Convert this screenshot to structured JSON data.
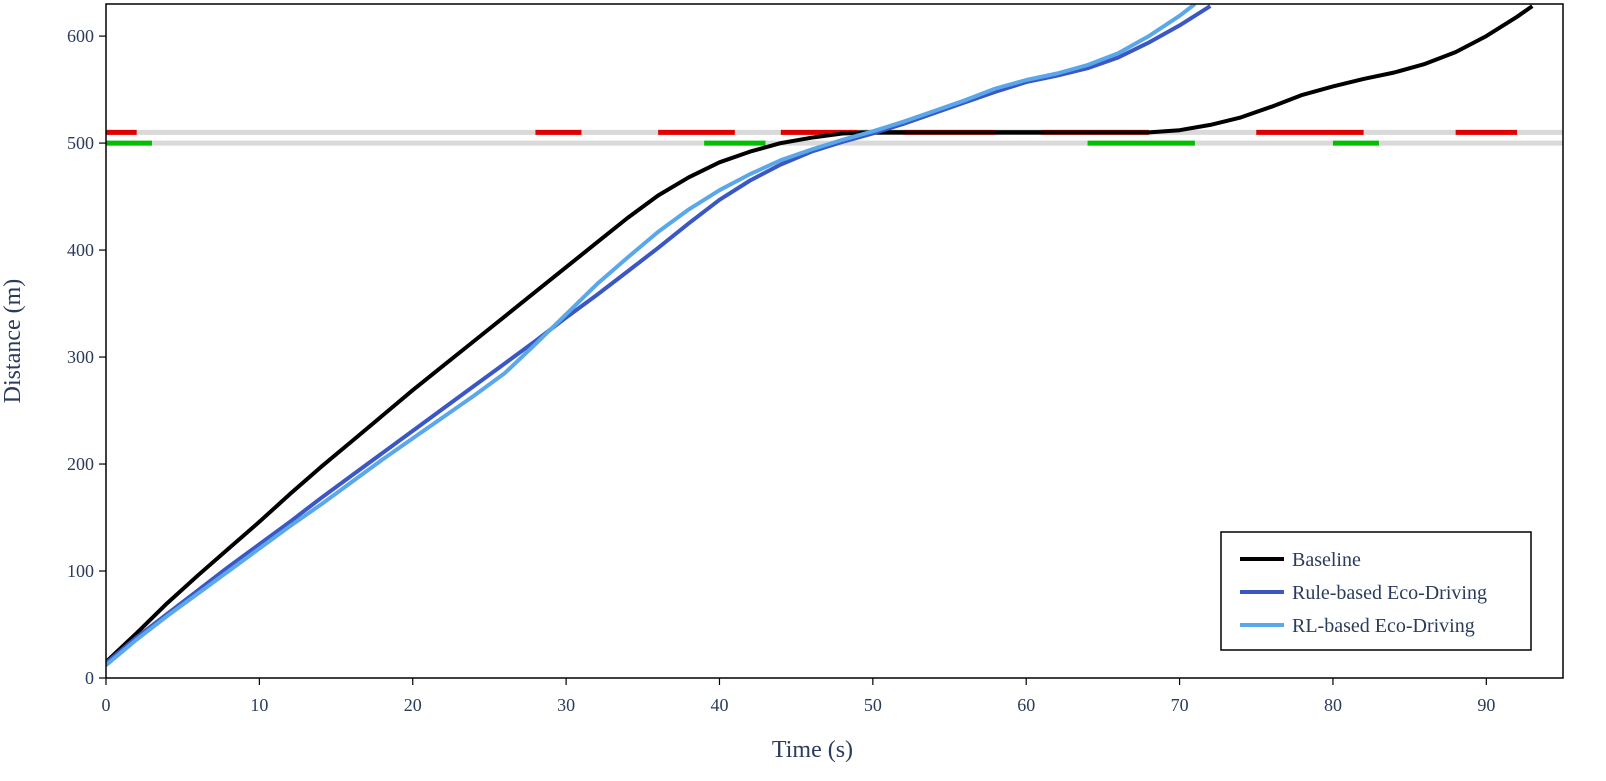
{
  "chart_data": {
    "type": "line",
    "title": "",
    "xlabel": "Time (s)",
    "ylabel": "Distance (m)",
    "xlim": [
      0,
      95
    ],
    "ylim": [
      0,
      630
    ],
    "xticks": [
      0,
      10,
      20,
      30,
      40,
      50,
      60,
      70,
      80,
      90
    ],
    "yticks": [
      0,
      100,
      200,
      300,
      400,
      500,
      600
    ],
    "grid": false,
    "legend_position": "bottom-right",
    "series": [
      {
        "name": "Baseline",
        "color": "#000000",
        "points": [
          [
            0,
            15
          ],
          [
            2,
            42
          ],
          [
            4,
            70
          ],
          [
            6,
            96
          ],
          [
            8,
            121
          ],
          [
            10,
            146
          ],
          [
            12,
            172
          ],
          [
            14,
            197
          ],
          [
            16,
            221
          ],
          [
            18,
            245
          ],
          [
            20,
            269
          ],
          [
            22,
            292
          ],
          [
            24,
            315
          ],
          [
            26,
            338
          ],
          [
            28,
            361
          ],
          [
            30,
            384
          ],
          [
            32,
            407
          ],
          [
            34,
            430
          ],
          [
            36,
            451
          ],
          [
            38,
            468
          ],
          [
            40,
            482
          ],
          [
            42,
            492
          ],
          [
            44,
            500
          ],
          [
            46,
            505
          ],
          [
            48,
            509
          ],
          [
            50,
            510
          ],
          [
            60,
            510
          ],
          [
            68,
            510
          ],
          [
            70,
            512
          ],
          [
            72,
            517
          ],
          [
            74,
            524
          ],
          [
            76,
            534
          ],
          [
            78,
            545
          ],
          [
            80,
            553
          ],
          [
            82,
            560
          ],
          [
            84,
            566
          ],
          [
            86,
            574
          ],
          [
            88,
            585
          ],
          [
            90,
            600
          ],
          [
            92,
            618
          ],
          [
            93,
            628
          ]
        ]
      },
      {
        "name": "Rule-based Eco-Driving",
        "color": "#3a57c4",
        "points": [
          [
            0,
            14
          ],
          [
            2,
            38
          ],
          [
            4,
            60
          ],
          [
            6,
            82
          ],
          [
            8,
            104
          ],
          [
            10,
            125
          ],
          [
            12,
            146
          ],
          [
            14,
            168
          ],
          [
            16,
            189
          ],
          [
            18,
            210
          ],
          [
            20,
            231
          ],
          [
            22,
            252
          ],
          [
            24,
            273
          ],
          [
            26,
            294
          ],
          [
            28,
            315
          ],
          [
            30,
            337
          ],
          [
            32,
            358
          ],
          [
            34,
            380
          ],
          [
            36,
            402
          ],
          [
            38,
            425
          ],
          [
            40,
            447
          ],
          [
            42,
            465
          ],
          [
            44,
            480
          ],
          [
            46,
            492
          ],
          [
            48,
            501
          ],
          [
            50,
            509
          ],
          [
            52,
            518
          ],
          [
            54,
            528
          ],
          [
            56,
            538
          ],
          [
            58,
            548
          ],
          [
            60,
            557
          ],
          [
            62,
            563
          ],
          [
            64,
            570
          ],
          [
            66,
            580
          ],
          [
            68,
            594
          ],
          [
            70,
            610
          ],
          [
            72,
            628
          ]
        ]
      },
      {
        "name": "RL-based Eco-Driving",
        "color": "#5aa8ea",
        "points": [
          [
            0,
            12
          ],
          [
            2,
            36
          ],
          [
            4,
            58
          ],
          [
            6,
            79
          ],
          [
            8,
            100
          ],
          [
            10,
            121
          ],
          [
            12,
            142
          ],
          [
            14,
            162
          ],
          [
            16,
            183
          ],
          [
            18,
            204
          ],
          [
            20,
            224
          ],
          [
            22,
            244
          ],
          [
            24,
            264
          ],
          [
            26,
            285
          ],
          [
            28,
            312
          ],
          [
            30,
            340
          ],
          [
            32,
            368
          ],
          [
            34,
            393
          ],
          [
            36,
            417
          ],
          [
            38,
            438
          ],
          [
            40,
            456
          ],
          [
            42,
            471
          ],
          [
            44,
            484
          ],
          [
            46,
            494
          ],
          [
            48,
            503
          ],
          [
            50,
            511
          ],
          [
            52,
            520
          ],
          [
            54,
            530
          ],
          [
            56,
            540
          ],
          [
            58,
            551
          ],
          [
            60,
            559
          ],
          [
            62,
            565
          ],
          [
            64,
            573
          ],
          [
            66,
            584
          ],
          [
            68,
            600
          ],
          [
            70,
            619
          ],
          [
            71,
            630
          ]
        ]
      }
    ],
    "signal_phases": [
      {
        "distance": 510,
        "red": [
          [
            0,
            2
          ],
          [
            28,
            31
          ],
          [
            36,
            41
          ],
          [
            44,
            49
          ],
          [
            52,
            58
          ],
          [
            61,
            68
          ],
          [
            75,
            82
          ],
          [
            88,
            92
          ]
        ],
        "green": [],
        "dark": [
          [
            49,
            52
          ],
          [
            58,
            61
          ]
        ]
      },
      {
        "distance": 500,
        "red": [],
        "green": [
          [
            0,
            3
          ],
          [
            39,
            43
          ],
          [
            64,
            71
          ],
          [
            80,
            83
          ]
        ],
        "dark": []
      }
    ],
    "colors": {
      "red_phase": "#e00000",
      "green_phase": "#00c000",
      "dark_phase": "#606060",
      "lane": "#d9d9d9",
      "axis": "#000000",
      "text": "#2b3b5c"
    }
  }
}
